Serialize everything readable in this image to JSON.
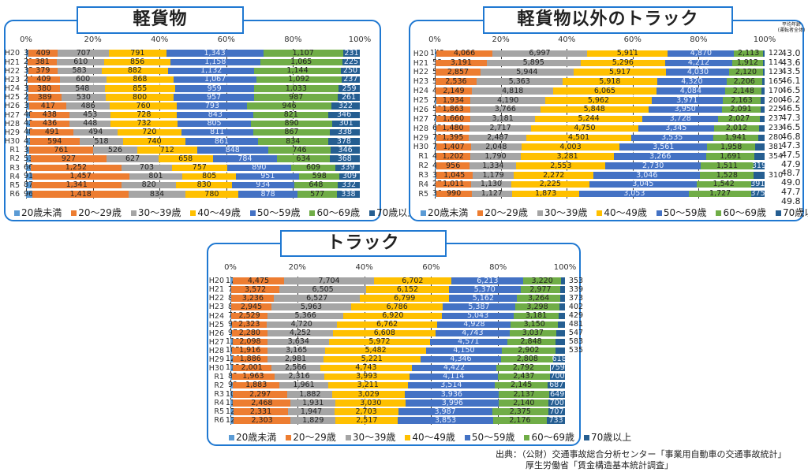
{
  "legend": [
    "20歳未満",
    "20～29歳",
    "30～39歳",
    "40～49歳",
    "50～59歳",
    "60～69歳",
    "70歳以上"
  ],
  "colors": [
    "#5B9BD5",
    "#ED7D31",
    "#A5A5A5",
    "#FFC000",
    "#4472C4",
    "#70AD47",
    "#255E91"
  ],
  "ticks": [
    "0%",
    "20%",
    "40%",
    "60%",
    "80%",
    "100%"
  ],
  "avg_age_header": "平均年齢\n(運転者全体)",
  "avg_ages": [
    "43.0",
    "43.6",
    "43.5",
    "46.1",
    "46.5",
    "46.2",
    "46.5",
    "47.3",
    "46.5",
    "46.8",
    "47.3",
    "47.5",
    "47.9",
    "48.7",
    "49.0",
    "47.7",
    "49.8"
  ],
  "source": {
    "line1": "出典：（公財）交通事故総合分析センター「事業用自動車の交通事故統計」",
    "line2": "厚生労働省「賃金構造基本統計調査」"
  },
  "chart_data": [
    {
      "type": "bar",
      "stacked": "percent",
      "orientation": "horizontal",
      "title": "軽貨物",
      "xlim": [
        0,
        100
      ],
      "grid": true,
      "legend_position": "bottom",
      "categories": [
        "H20",
        "H21",
        "H22",
        "H23",
        "H24",
        "H25",
        "H26",
        "H27",
        "H28",
        "H29",
        "H30",
        "R1",
        "R2",
        "R3",
        "R4",
        "R5",
        "R6"
      ],
      "series": [
        {
          "name": "20歳未満",
          "values": [
            33,
            21,
            33,
            24,
            31,
            27,
            39,
            40,
            42,
            48,
            43,
            38,
            53,
            66,
            91,
            87,
            96
          ]
        },
        {
          "name": "20～29歳",
          "values": [
            409,
            381,
            379,
            409,
            380,
            389,
            417,
            438,
            436,
            491,
            594,
            761,
            927,
            1252,
            1457,
            1341,
            1418
          ]
        },
        {
          "name": "30～39歳",
          "values": [
            707,
            610,
            583,
            600,
            548,
            530,
            486,
            453,
            448,
            494,
            518,
            526,
            627,
            703,
            801,
            820,
            834
          ]
        },
        {
          "name": "40～49歳",
          "values": [
            791,
            856,
            882,
            868,
            855,
            800,
            760,
            728,
            732,
            720,
            740,
            712,
            658,
            757,
            805,
            830,
            780
          ]
        },
        {
          "name": "50～59歳",
          "values": [
            1343,
            1158,
            1132,
            1067,
            959,
            957,
            793,
            843,
            805,
            811,
            861,
            848,
            784,
            890,
            951,
            934,
            878
          ]
        },
        {
          "name": "60～69歳",
          "values": [
            1107,
            1065,
            1144,
            1092,
            1033,
            987,
            946,
            821,
            890,
            867,
            834,
            746,
            634,
            609,
            598,
            648,
            577
          ]
        },
        {
          "name": "70歳以上",
          "values": [
            231,
            225,
            250,
            237,
            259,
            261,
            322,
            346,
            301,
            338,
            378,
            346,
            368,
            339,
            309,
            332,
            338
          ]
        }
      ]
    },
    {
      "type": "bar",
      "stacked": "percent",
      "orientation": "horizontal",
      "title": "軽貨物以外のトラック",
      "xlim": [
        0,
        100
      ],
      "grid": true,
      "legend_position": "bottom",
      "categories": [
        "H20",
        "H21",
        "H22",
        "H23",
        "H24",
        "H25",
        "H26",
        "H27",
        "H28",
        "H29",
        "H30",
        "R1",
        "R2",
        "R3",
        "R4",
        "R5"
      ],
      "series": [
        {
          "name": "20歳未満",
          "values": [
            143,
            58,
            55,
            59,
            40,
            71,
            58,
            79,
            63,
            78,
            70,
            45,
            46,
            35,
            27,
            36
          ]
        },
        {
          "name": "20～29歳",
          "values": [
            4066,
            3191,
            2857,
            2536,
            2149,
            1934,
            1863,
            1660,
            1480,
            1395,
            1407,
            1202,
            956,
            1045,
            1011,
            990
          ]
        },
        {
          "name": "30～39歳",
          "values": [
            6997,
            5895,
            5944,
            5363,
            4818,
            4190,
            3766,
            3181,
            2717,
            2487,
            2048,
            1790,
            1334,
            1179,
            1130,
            1127
          ]
        },
        {
          "name": "40～49歳",
          "values": [
            5911,
            5296,
            5917,
            5918,
            6065,
            5962,
            5848,
            5244,
            4750,
            4501,
            4003,
            3281,
            2553,
            2272,
            2225,
            1873
          ]
        },
        {
          "name": "50～59歳",
          "values": [
            4870,
            4212,
            4030,
            4320,
            4084,
            3971,
            3950,
            3728,
            3345,
            3535,
            3561,
            3266,
            2730,
            3046,
            3045,
            3053
          ]
        },
        {
          "name": "60～69歳",
          "values": [
            2113,
            1912,
            2120,
            2206,
            2148,
            2163,
            2091,
            2027,
            2012,
            1941,
            1958,
            1691,
            1511,
            1528,
            1542,
            1727
          ]
        },
        {
          "name": "70歳以上",
          "values": [
            122,
            114,
            123,
            165,
            170,
            200,
            225,
            237,
            233,
            280,
            381,
            354,
            319,
            310,
            391,
            375
          ]
        }
      ]
    },
    {
      "type": "bar",
      "stacked": "percent",
      "orientation": "horizontal",
      "title": "トラック",
      "xlim": [
        0,
        100
      ],
      "grid": true,
      "legend_position": "bottom",
      "categories": [
        "H20",
        "H21",
        "H22",
        "H23",
        "H24",
        "H25",
        "H26",
        "H27",
        "H28",
        "H29",
        "H30",
        "R1",
        "R2",
        "R3",
        "R4",
        "R5",
        "R6"
      ],
      "series": [
        {
          "name": "20歳未満",
          "values": [
            176,
            79,
            88,
            83,
            71,
            98,
            97,
            119,
            105,
            126,
            113,
            83,
            99,
            101,
            118,
            123,
            129
          ]
        },
        {
          "name": "20～29歳",
          "values": [
            4475,
            3572,
            3236,
            2945,
            2529,
            2323,
            2280,
            2098,
            1916,
            1886,
            2001,
            1963,
            1883,
            2297,
            2468,
            2331,
            2303
          ]
        },
        {
          "name": "30～39歳",
          "values": [
            7704,
            6505,
            6527,
            5963,
            5366,
            4720,
            4252,
            3634,
            3165,
            2981,
            2566,
            2316,
            1961,
            1882,
            1931,
            1947,
            1829
          ]
        },
        {
          "name": "40～49歳",
          "values": [
            6702,
            6152,
            6799,
            6786,
            6920,
            6762,
            6608,
            5972,
            5482,
            5221,
            4743,
            3993,
            3211,
            3029,
            3030,
            2703,
            2517
          ]
        },
        {
          "name": "50～59歳",
          "values": [
            6213,
            5370,
            5162,
            5387,
            5043,
            4928,
            4743,
            4571,
            4150,
            4346,
            4422,
            4114,
            3514,
            3936,
            3996,
            3987,
            3853
          ]
        },
        {
          "name": "60～69歳",
          "values": [
            3220,
            2977,
            3264,
            3298,
            3181,
            3150,
            3037,
            2848,
            2902,
            2808,
            2792,
            2437,
            2145,
            2137,
            2140,
            2375,
            2176
          ]
        },
        {
          "name": "70歳以上",
          "values": [
            353,
            339,
            373,
            402,
            429,
            481,
            547,
            583,
            535,
            618,
            759,
            700,
            687,
            649,
            700,
            707,
            733
          ]
        }
      ]
    }
  ]
}
